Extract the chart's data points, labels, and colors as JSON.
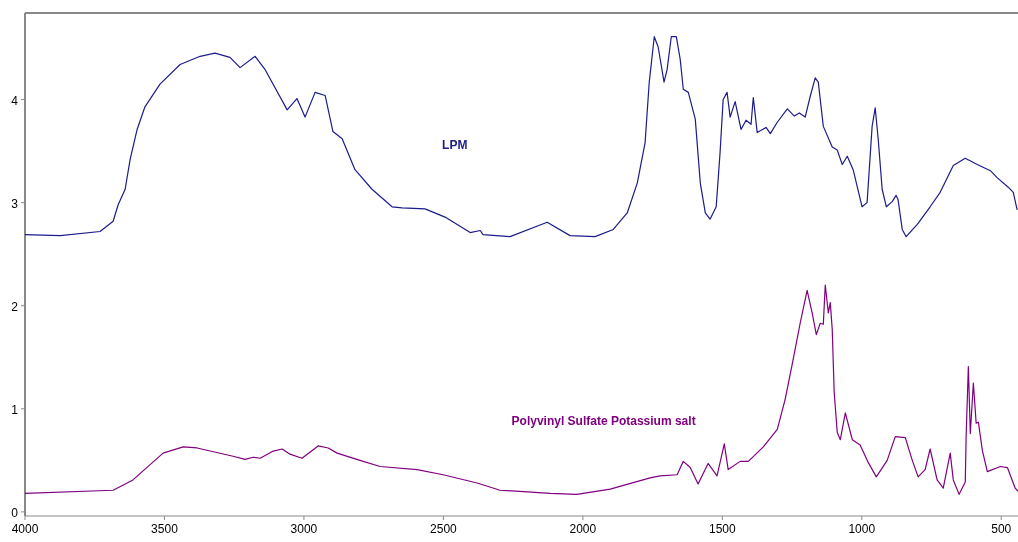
{
  "chart_data": {
    "type": "line",
    "xlim": [
      4000,
      440
    ],
    "xticks": [
      4000,
      3500,
      3000,
      2500,
      2000,
      1500,
      1000,
      500
    ],
    "ylim": [
      -0.04,
      4.84
    ],
    "yticks": [
      0,
      1,
      2,
      3,
      4
    ],
    "grid": false,
    "marker": "none",
    "line_style": "solid",
    "series": [
      {
        "name": "LPM",
        "color": "#1c1c8c",
        "x": [
          4000,
          3874,
          3731,
          3684,
          3666,
          3641,
          3623,
          3598,
          3570,
          3516,
          3444,
          3372,
          3319,
          3265,
          3229,
          3175,
          3139,
          3060,
          3025,
          2996,
          2960,
          2924,
          2896,
          2863,
          2817,
          2756,
          2684,
          2648,
          2566,
          2494,
          2404,
          2368,
          2358,
          2261,
          2128,
          2046,
          1956,
          1891,
          1841,
          1805,
          1777,
          1762,
          1744,
          1730,
          1709,
          1698,
          1683,
          1665,
          1651,
          1640,
          1622,
          1597,
          1579,
          1561,
          1544,
          1522,
          1508,
          1497,
          1483,
          1472,
          1454,
          1433,
          1415,
          1397,
          1389,
          1375,
          1343,
          1328,
          1303,
          1267,
          1242,
          1224,
          1203,
          1185,
          1167,
          1156,
          1138,
          1106,
          1088,
          1070,
          1052,
          1031,
          999,
          981,
          963,
          952,
          941,
          927,
          912,
          891,
          877,
          870,
          855,
          841,
          801,
          755,
          719,
          672,
          629,
          586,
          539,
          514,
          475,
          457,
          443
        ],
        "values": [
          2.69,
          2.68,
          2.72,
          2.82,
          2.98,
          3.13,
          3.42,
          3.71,
          3.93,
          4.15,
          4.34,
          4.42,
          4.45,
          4.41,
          4.31,
          4.42,
          4.29,
          3.9,
          4.01,
          3.83,
          4.07,
          4.04,
          3.69,
          3.62,
          3.32,
          3.13,
          2.96,
          2.95,
          2.94,
          2.86,
          2.71,
          2.73,
          2.69,
          2.67,
          2.81,
          2.68,
          2.67,
          2.74,
          2.9,
          3.19,
          3.58,
          4.17,
          4.61,
          4.51,
          4.17,
          4.29,
          4.61,
          4.61,
          4.39,
          4.1,
          4.07,
          3.81,
          3.19,
          2.9,
          2.84,
          2.96,
          3.49,
          4.0,
          4.07,
          3.83,
          3.98,
          3.71,
          3.8,
          3.76,
          4.02,
          3.68,
          3.73,
          3.67,
          3.78,
          3.91,
          3.84,
          3.87,
          3.83,
          4.03,
          4.21,
          4.17,
          3.74,
          3.54,
          3.51,
          3.37,
          3.45,
          3.32,
          2.96,
          3.0,
          3.74,
          3.92,
          3.61,
          3.13,
          2.96,
          3.01,
          3.07,
          3.03,
          2.74,
          2.67,
          2.79,
          2.96,
          3.1,
          3.36,
          3.43,
          3.37,
          3.31,
          3.24,
          3.15,
          3.1,
          2.93
        ]
      },
      {
        "name": "Polyvinyl Sulfate Potassium salt",
        "color": "#800080",
        "x": [
          4000,
          3684,
          3613,
          3505,
          3433,
          3383,
          3254,
          3211,
          3182,
          3157,
          3110,
          3078,
          3050,
          3007,
          2949,
          2913,
          2881,
          2799,
          2727,
          2594,
          2501,
          2379,
          2297,
          2117,
          2021,
          1902,
          1759,
          1723,
          1662,
          1640,
          1615,
          1587,
          1551,
          1519,
          1493,
          1479,
          1436,
          1407,
          1353,
          1303,
          1275,
          1246,
          1221,
          1196,
          1178,
          1163,
          1149,
          1138,
          1131,
          1120,
          1113,
          1106,
          1099,
          1088,
          1077,
          1059,
          1034,
          1006,
          977,
          948,
          909,
          880,
          844,
          819,
          798,
          773,
          755,
          730,
          708,
          683,
          672,
          651,
          629,
          626,
          618,
          611,
          600,
          590,
          582,
          568,
          550,
          503,
          478,
          450,
          440
        ],
        "values": [
          0.18,
          0.21,
          0.31,
          0.57,
          0.63,
          0.62,
          0.54,
          0.51,
          0.53,
          0.52,
          0.59,
          0.61,
          0.56,
          0.52,
          0.64,
          0.62,
          0.57,
          0.5,
          0.44,
          0.41,
          0.36,
          0.28,
          0.21,
          0.18,
          0.17,
          0.22,
          0.33,
          0.35,
          0.36,
          0.49,
          0.43,
          0.27,
          0.47,
          0.35,
          0.66,
          0.41,
          0.49,
          0.49,
          0.63,
          0.8,
          1.09,
          1.48,
          1.83,
          2.15,
          1.93,
          1.72,
          1.83,
          1.82,
          2.2,
          1.93,
          2.03,
          1.77,
          1.16,
          0.77,
          0.7,
          0.96,
          0.7,
          0.65,
          0.48,
          0.34,
          0.5,
          0.73,
          0.72,
          0.5,
          0.34,
          0.41,
          0.61,
          0.31,
          0.23,
          0.57,
          0.31,
          0.17,
          0.29,
          0.73,
          1.41,
          0.76,
          1.25,
          0.86,
          0.87,
          0.6,
          0.39,
          0.44,
          0.43,
          0.23,
          0.2
        ]
      }
    ]
  }
}
